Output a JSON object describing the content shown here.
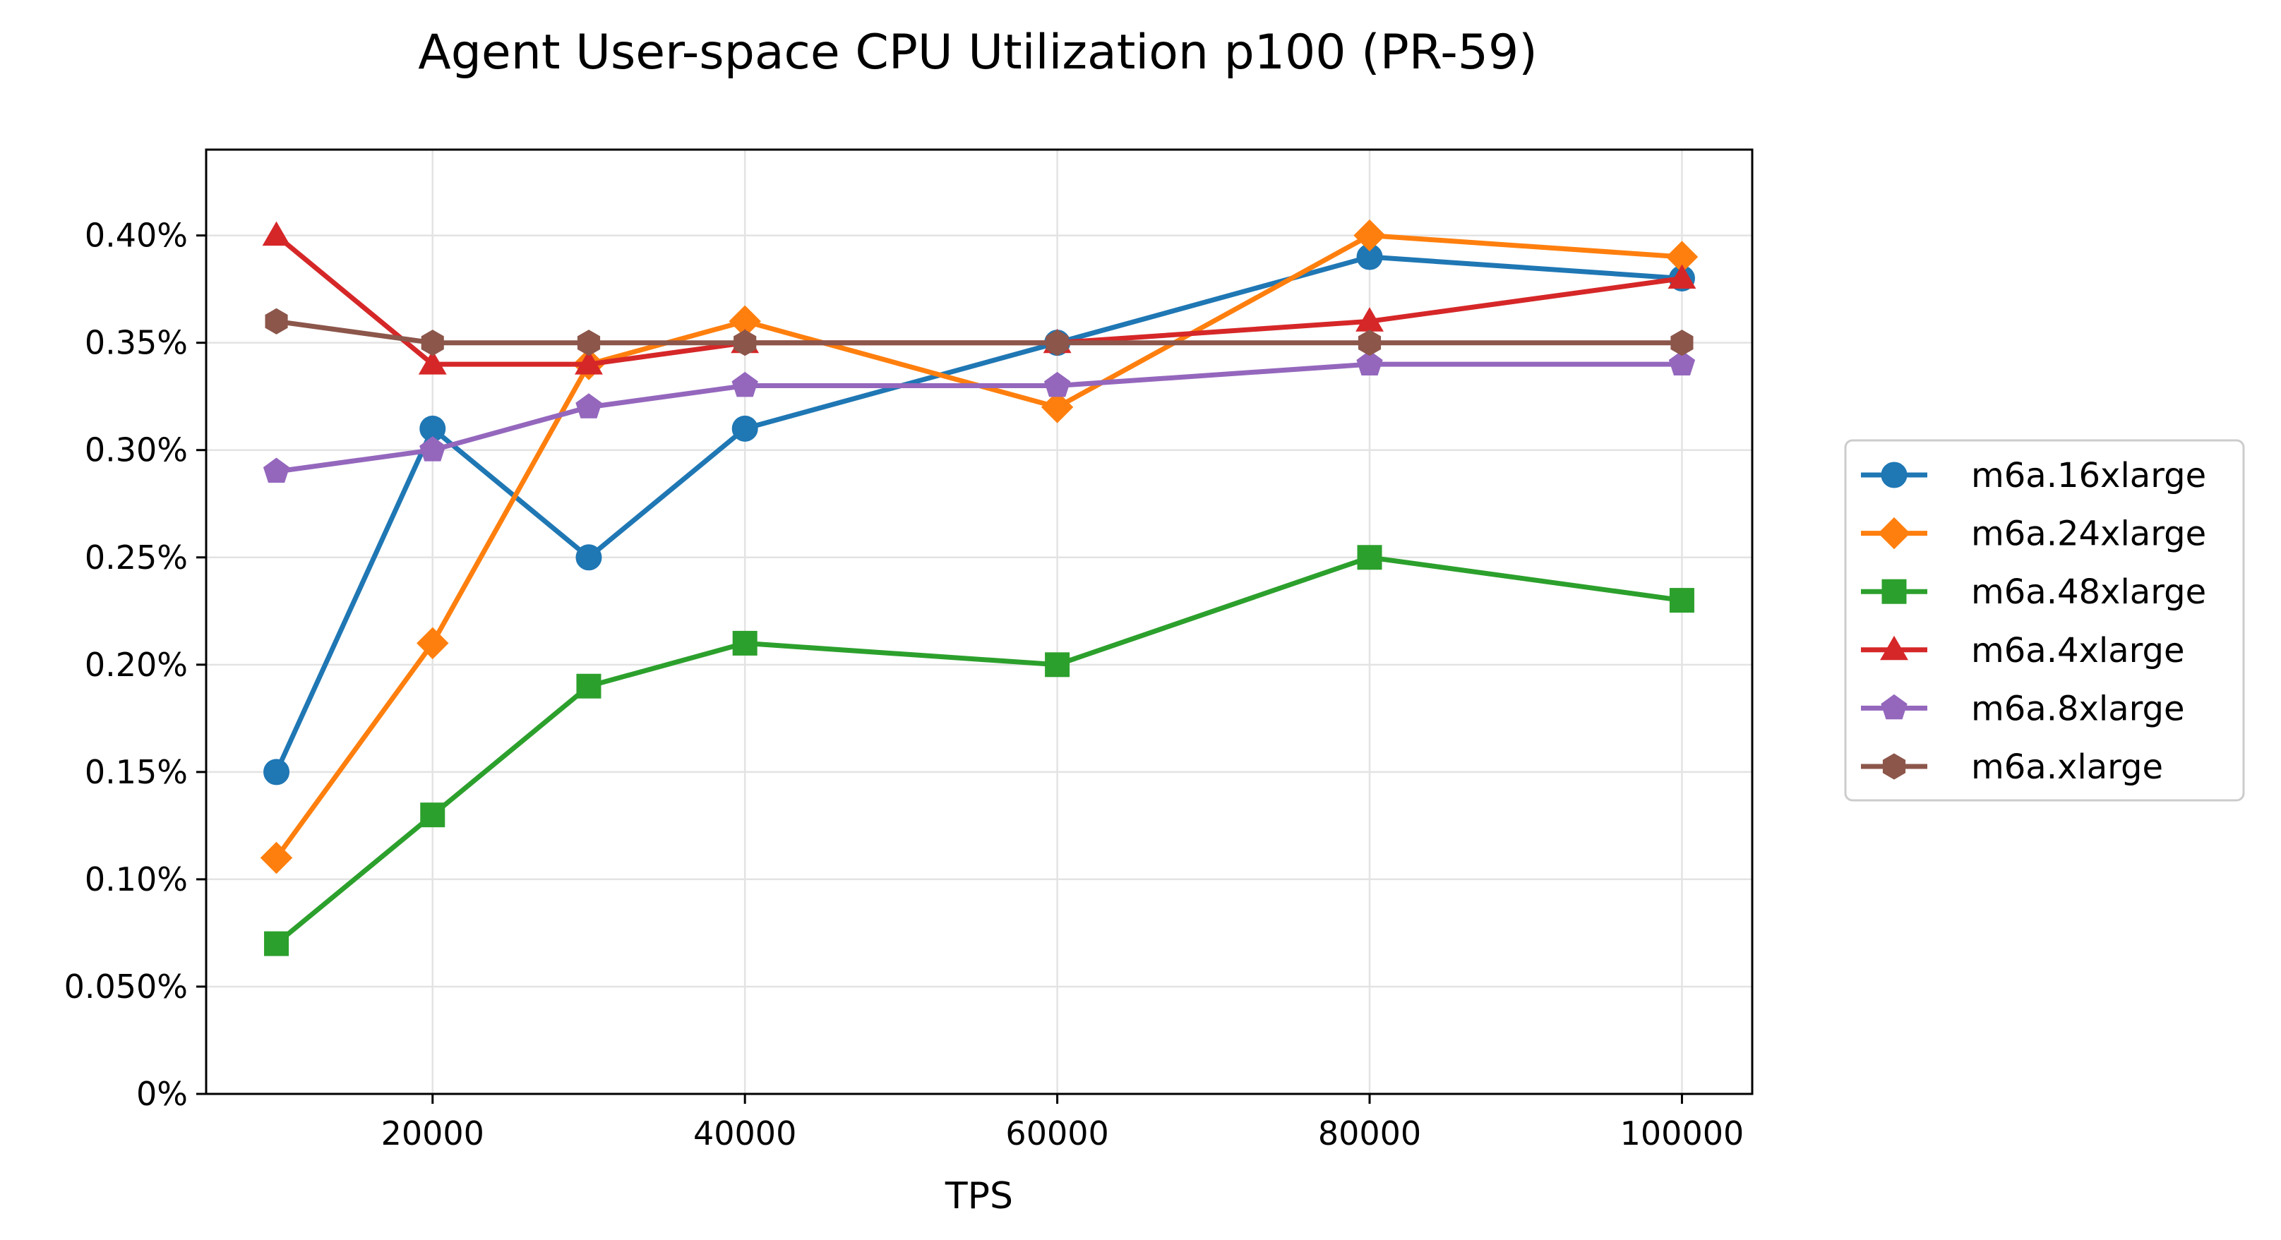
{
  "chart_data": {
    "type": "line",
    "title": "Agent User-space CPU Utilization p100 (PR-59)",
    "xlabel": "TPS",
    "ylabel": "",
    "xlim": [
      5500,
      104500
    ],
    "ylim": [
      0,
      0.0044
    ],
    "xticks": [
      20000,
      40000,
      60000,
      80000,
      100000
    ],
    "xtick_labels": [
      "20000",
      "40000",
      "60000",
      "80000",
      "100000"
    ],
    "yticks": [
      0,
      0.0005,
      0.001,
      0.0015,
      0.002,
      0.0025,
      0.003,
      0.0035,
      0.004
    ],
    "ytick_labels": [
      "0%",
      "0.050%",
      "0.10%",
      "0.15%",
      "0.20%",
      "0.25%",
      "0.30%",
      "0.35%",
      "0.40%"
    ],
    "grid": true,
    "legend_position": "outside-right",
    "x": [
      10000,
      20000,
      30000,
      40000,
      60000,
      80000,
      100000
    ],
    "series": [
      {
        "name": "m6a.16xlarge",
        "color": "#1f77b4",
        "marker": "circle",
        "values": [
          0.0015,
          0.0031,
          0.0025,
          0.0031,
          0.0035,
          0.0039,
          0.0038
        ]
      },
      {
        "name": "m6a.24xlarge",
        "color": "#ff7f0e",
        "marker": "diamond",
        "values": [
          0.0011,
          0.0021,
          0.0034,
          0.0036,
          0.0032,
          0.004,
          0.0039
        ]
      },
      {
        "name": "m6a.48xlarge",
        "color": "#2ca02c",
        "marker": "square",
        "values": [
          0.0007,
          0.0013,
          0.0019,
          0.0021,
          0.002,
          0.0025,
          0.0023
        ]
      },
      {
        "name": "m6a.4xlarge",
        "color": "#d62728",
        "marker": "triangle",
        "values": [
          0.004,
          0.0034,
          0.0034,
          0.0035,
          0.0035,
          0.0036,
          0.0038
        ]
      },
      {
        "name": "m6a.8xlarge",
        "color": "#9467bd",
        "marker": "pentagon",
        "values": [
          0.0029,
          0.003,
          0.0032,
          0.0033,
          0.0033,
          0.0034,
          0.0034
        ]
      },
      {
        "name": "m6a.xlarge",
        "color": "#8c564b",
        "marker": "hexagon",
        "values": [
          0.0036,
          0.0035,
          0.0035,
          0.0035,
          0.0035,
          0.0035,
          0.0035
        ]
      }
    ]
  }
}
